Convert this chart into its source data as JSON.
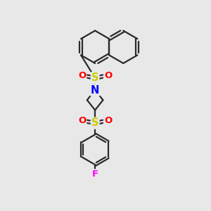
{
  "background_color": "#e8e8e8",
  "bond_color": "#2a2a2a",
  "atom_colors": {
    "S": "#cccc00",
    "O": "#ff0000",
    "N": "#0000ff",
    "F": "#ff00ff",
    "C": "#2a2a2a"
  },
  "line_width": 1.6,
  "figsize": [
    3.0,
    3.0
  ],
  "dpi": 100,
  "font_size_atom": 8.5
}
